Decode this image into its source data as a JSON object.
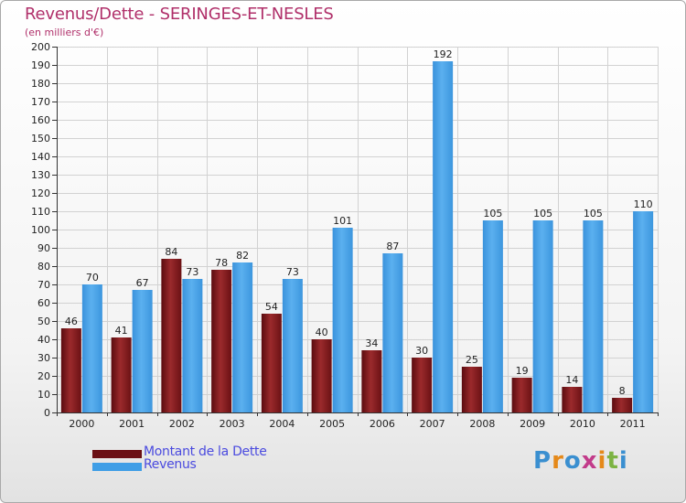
{
  "title": "Revenus/Dette - SERINGES-ET-NESLES",
  "subtitle": "(en milliers d'€)",
  "logo": {
    "text": "Proxiti",
    "colors": [
      "#3a8fd0",
      "#e5891a",
      "#3a8fd0",
      "#c23b8a",
      "#e5891a",
      "#7cb342",
      "#3a8fd0"
    ]
  },
  "legend": [
    {
      "label": "Montant de la Dette",
      "color": "#6b0f14"
    },
    {
      "label": "Revenus",
      "color": "#3f9ee6"
    }
  ],
  "colors": {
    "dette": "#8b1a1a",
    "revenus": "#4aa3e8"
  },
  "chart_data": {
    "type": "bar",
    "title": "Revenus/Dette - SERINGES-ET-NESLES",
    "subtitle": "(en milliers d'€)",
    "xlabel": "",
    "ylabel": "",
    "ylim": [
      0,
      200
    ],
    "ytick_step": 10,
    "grid": true,
    "legend_position": "bottom-left",
    "categories": [
      "2000",
      "2001",
      "2002",
      "2003",
      "2004",
      "2005",
      "2006",
      "2007",
      "2008",
      "2009",
      "2010",
      "2011"
    ],
    "series": [
      {
        "name": "Montant de la Dette",
        "values": [
          46,
          41,
          84,
          78,
          54,
          40,
          34,
          30,
          25,
          19,
          14,
          8
        ]
      },
      {
        "name": "Revenus",
        "values": [
          70,
          67,
          73,
          82,
          73,
          101,
          87,
          192,
          105,
          105,
          105,
          110
        ]
      }
    ]
  }
}
